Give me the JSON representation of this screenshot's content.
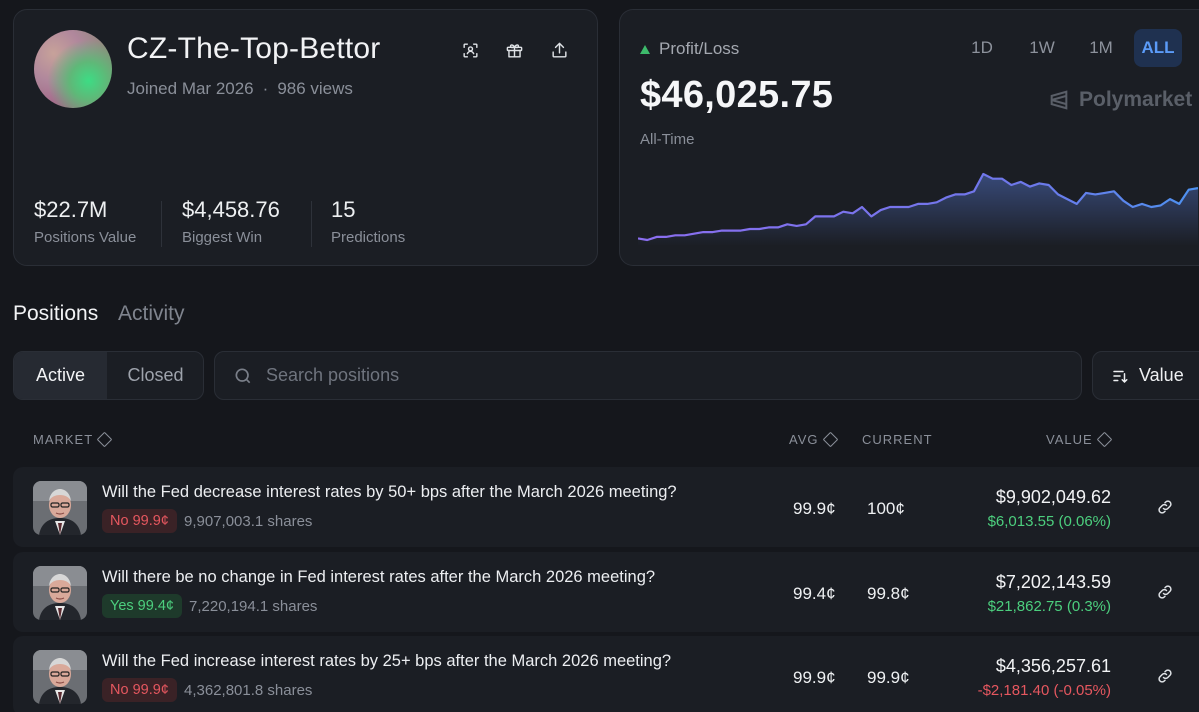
{
  "profile": {
    "username": "CZ-The-Top-Bettor",
    "joined": "Joined Mar 2026",
    "separator": "·",
    "views": "986 views",
    "icons": [
      "scan-icon",
      "gift-icon",
      "share-icon"
    ],
    "stats": [
      {
        "value": "$22.7M",
        "label": "Positions Value"
      },
      {
        "value": "$4,458.76",
        "label": "Biggest Win"
      },
      {
        "value": "15",
        "label": "Predictions"
      }
    ]
  },
  "pnl": {
    "label": "Profit/Loss",
    "value": "$46,025.75",
    "period": "All-Time",
    "ranges": [
      "1D",
      "1W",
      "1M",
      "ALL"
    ],
    "active_range": "ALL",
    "brand": "Polymarket",
    "accent_color": "#7b6ef6"
  },
  "chart_data": {
    "type": "area",
    "x": [
      0,
      1,
      2,
      3,
      4,
      5,
      6,
      7,
      8,
      9,
      10,
      11,
      12,
      13,
      14,
      15,
      16,
      17,
      18,
      19,
      20,
      21,
      22,
      23,
      24,
      25,
      26,
      27,
      28,
      29,
      30,
      31,
      32,
      33,
      34,
      35,
      36,
      37,
      38,
      39,
      40,
      41,
      42,
      43,
      44,
      45,
      46,
      47,
      48,
      49,
      50,
      51,
      52,
      53,
      54,
      55,
      56,
      57,
      58,
      59,
      60
    ],
    "values": [
      2,
      1,
      3,
      3,
      4,
      4,
      5,
      6,
      6,
      7,
      7,
      7,
      8,
      8,
      9,
      9,
      11,
      10,
      11,
      16,
      16,
      16,
      19,
      18,
      22,
      16,
      20,
      22,
      22,
      22,
      24,
      24,
      25,
      28,
      30,
      30,
      32,
      43,
      40,
      40,
      36,
      38,
      35,
      37,
      36,
      30,
      27,
      24,
      31,
      30,
      31,
      32,
      26,
      22,
      24,
      22,
      23,
      27,
      24,
      33,
      34
    ],
    "y_axis_visible": false,
    "x_axis_visible": false,
    "grid": false
  },
  "tabs": {
    "items": [
      "Positions",
      "Activity"
    ],
    "active": "Positions"
  },
  "filters": {
    "active_label": "Active",
    "closed_label": "Closed",
    "search_placeholder": "Search positions",
    "sort_label": "Value"
  },
  "table": {
    "headers": {
      "market": "MARKET",
      "avg": "AVG",
      "current": "CURRENT",
      "value": "VALUE"
    },
    "rows": [
      {
        "question": "Will the Fed decrease interest rates by 50+ bps after the March 2026 meeting?",
        "outcome": "No 99.9¢",
        "outcome_type": "no",
        "shares": "9,907,003.1 shares",
        "avg": "99.9¢",
        "current": "100¢",
        "value": "$9,902,049.62",
        "pnl": "$6,013.55 (0.06%)",
        "pnl_dir": "up"
      },
      {
        "question": "Will there be no change in Fed interest rates after the March 2026 meeting?",
        "outcome": "Yes 99.4¢",
        "outcome_type": "yes",
        "shares": "7,220,194.1 shares",
        "avg": "99.4¢",
        "current": "99.8¢",
        "value": "$7,202,143.59",
        "pnl": "$21,862.75 (0.3%)",
        "pnl_dir": "up"
      },
      {
        "question": "Will the Fed increase interest rates by 25+ bps after the March 2026 meeting?",
        "outcome": "No 99.9¢",
        "outcome_type": "no",
        "shares": "4,362,801.8 shares",
        "avg": "99.9¢",
        "current": "99.9¢",
        "value": "$4,356,257.61",
        "pnl": "-$2,181.40 (-0.05%)",
        "pnl_dir": "down"
      }
    ]
  }
}
